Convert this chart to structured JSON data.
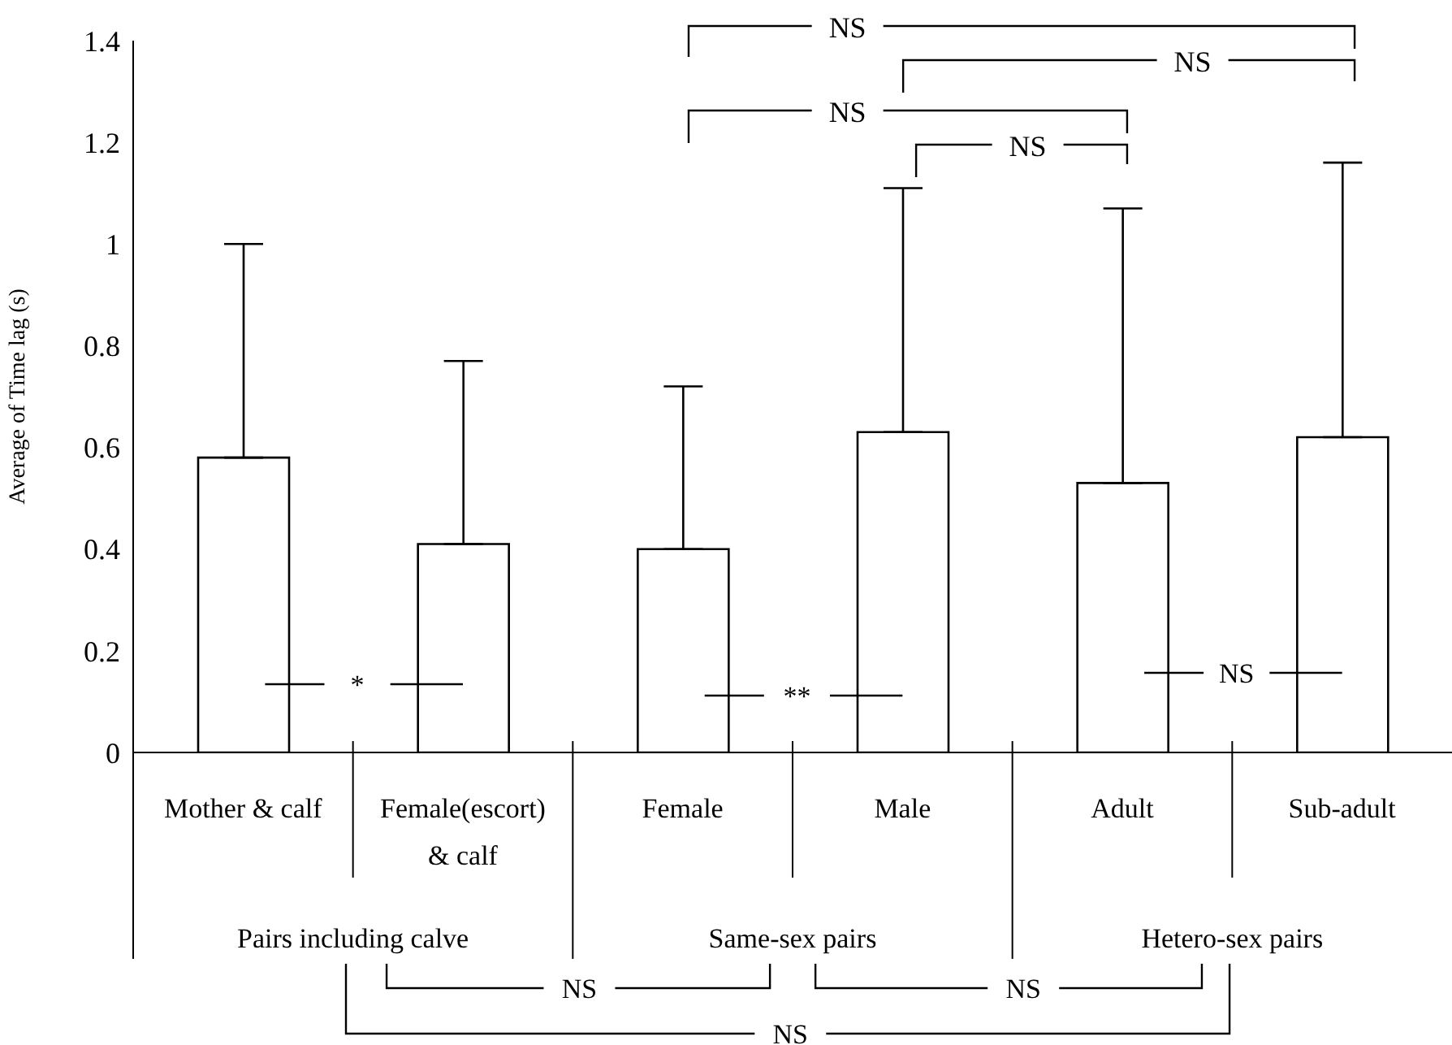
{
  "chart_data": {
    "type": "bar",
    "ylabel": "Average of Time lag (s)",
    "categories": [
      "Mother & calf",
      "Female(escort) & calf",
      "Female",
      "Male",
      "Adult",
      "Sub-adult"
    ],
    "values": [
      0.58,
      0.41,
      0.4,
      0.63,
      0.53,
      0.62
    ],
    "color": "#ffffff",
    "errors": [
      [
        0.58,
        1.0
      ],
      [
        0.41,
        0.77
      ],
      [
        0.4,
        0.72
      ],
      [
        0.63,
        1.11
      ],
      [
        0.53,
        1.07
      ],
      [
        0.62,
        1.16
      ]
    ],
    "ylim": [
      0,
      1.4
    ],
    "yticks": [
      0,
      0.2,
      0.4,
      0.6,
      0.8,
      1,
      1.2,
      1.4
    ],
    "annotations": [
      "*",
      "**",
      "NS",
      "NS",
      "NS",
      "NS",
      "NS",
      "NS",
      "NS",
      "NS",
      "Pairs including calve",
      "Same-sex pairs",
      "Hetero-sex pairs"
    ]
  }
}
